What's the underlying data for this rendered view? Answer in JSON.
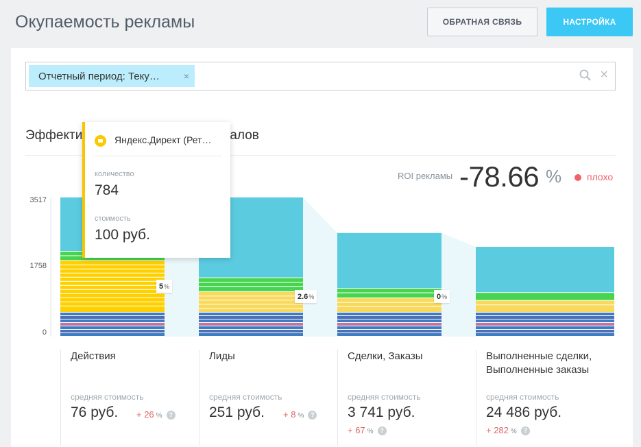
{
  "header": {
    "title": "Окупаемость рекламы",
    "feedback_label": "ОБРАТНАЯ СВЯЗЬ",
    "settings_label": "НАСТРОЙКА"
  },
  "filter": {
    "chip_label": "Отчетный период: Теку…",
    "chip_close": "×",
    "clear": "×"
  },
  "section": {
    "title_visible_start": "Эффекти",
    "title_visible_end": "алов"
  },
  "roi": {
    "label": "ROI рекламы",
    "value": "-78.66",
    "unit": "%",
    "status": "плохо",
    "status_color": "#f0636a"
  },
  "tooltip": {
    "title": "Яндекс.Директ (Рет…",
    "icon": "chat-bubble-icon",
    "quantity_label": "количество",
    "quantity_value": "784",
    "cost_label": "стоимость",
    "cost_value": "100 руб."
  },
  "chart_data": {
    "type": "bar",
    "y_ticks": [
      "3517",
      "1758",
      "0"
    ],
    "ylim": [
      0,
      3517
    ],
    "categories": [
      "Действия",
      "Лиды",
      "Сделки, Заказы",
      "Выполненные сделки, Выполненные заказы"
    ],
    "totals": [
      3517,
      3517,
      2620,
      2270
    ],
    "conversion_labels": [
      {
        "value": "5",
        "unit": "%"
      },
      {
        "value": "2.6",
        "unit": "%"
      },
      {
        "value": "0",
        "unit": "%"
      }
    ],
    "colors": {
      "teal": "#5bcbe0",
      "light_teal": "#83d6e8",
      "yellow": "#ffd000",
      "light_yellow": "#f9d95c",
      "green": "#47d44f",
      "light_green": "#9ee07a",
      "pink": "#c2739e",
      "blue": "#3e7cc4",
      "dark_blue": "#4e6fb4"
    }
  },
  "stages": [
    {
      "name": "Действия",
      "cost_label": "средняя стоимость",
      "cost": "76 руб.",
      "delta": "+ 26",
      "delta_unit": "%"
    },
    {
      "name": "Лиды",
      "cost_label": "средняя стоимость",
      "cost": "251 руб.",
      "delta": "+ 8",
      "delta_unit": "%"
    },
    {
      "name": "Сделки, Заказы",
      "cost_label": "средняя стоимость",
      "cost": "3 741 руб.",
      "delta": "+ 67",
      "delta_unit": "%"
    },
    {
      "name": "Выполненные сделки, Выполненные заказы",
      "cost_label": "средняя стоимость",
      "cost": "24 486 руб.",
      "delta": "+ 282",
      "delta_unit": "%"
    }
  ],
  "help_glyph": "?"
}
